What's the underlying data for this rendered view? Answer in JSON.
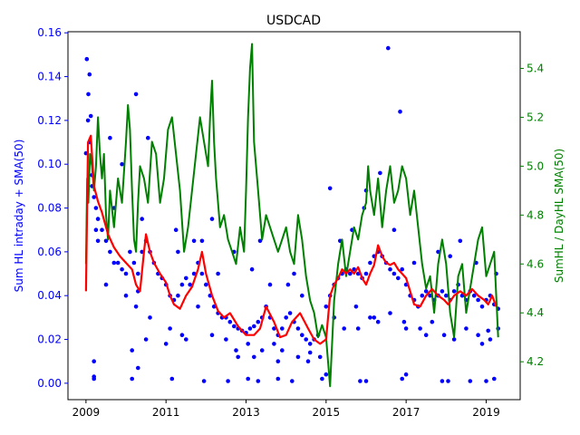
{
  "chart_data": {
    "type": "scatter",
    "title": "USDCAD",
    "ylabel": "Sum HL intraday + SMA(50)",
    "y2label": "SumHL / DayHL SMA(50)",
    "xlim": [
      2008.55,
      2019.85
    ],
    "ylim": [
      -0.0075,
      0.1605
    ],
    "y2lim": [
      4.045,
      5.55
    ],
    "x_ticks": [
      2009,
      2011,
      2013,
      2015,
      2017,
      2019
    ],
    "x_tick_labels": [
      "2009",
      "2011",
      "2013",
      "2015",
      "2017",
      "2019"
    ],
    "y_ticks": [
      0.0,
      0.02,
      0.04,
      0.06,
      0.08,
      0.1,
      0.12,
      0.14,
      0.16
    ],
    "y_tick_labels": [
      "0.00",
      "0.02",
      "0.04",
      "0.06",
      "0.08",
      "0.10",
      "0.12",
      "0.14",
      "0.16"
    ],
    "y2_ticks": [
      4.2,
      4.4,
      4.6,
      4.8,
      5.0,
      5.2,
      5.4
    ],
    "y2_tick_labels": [
      "4.2",
      "4.4",
      "4.6",
      "4.8",
      "5.0",
      "5.2",
      "5.4"
    ],
    "grid": false,
    "colors": {
      "left_axis": "#0000ff",
      "right_axis": "#008000",
      "points": "#0000ff",
      "sma": "#ff0000",
      "ratio": "#008000"
    },
    "series": [
      {
        "kind": "scatter",
        "axis": "left",
        "x": [
          2009.0,
          2009.05,
          2009.1,
          2009.15,
          2009.2,
          2009.25,
          2009.3,
          2009.4,
          2009.5,
          2009.6,
          2009.7,
          2009.8,
          2009.9,
          2010.0,
          2010.1,
          2010.2,
          2010.3,
          2010.4,
          2010.5,
          2010.6,
          2010.7,
          2010.8,
          2010.9,
          2011.0,
          2011.1,
          2011.2,
          2011.3,
          2011.4,
          2011.5,
          2011.6,
          2011.7,
          2011.8,
          2011.9,
          2012.0,
          2012.1,
          2012.2,
          2012.3,
          2012.4,
          2012.5,
          2012.6,
          2012.7,
          2012.8,
          2012.9,
          2013.0,
          2013.1,
          2013.2,
          2013.3,
          2013.4,
          2013.5,
          2013.6,
          2013.7,
          2013.8,
          2013.9,
          2014.0,
          2014.1,
          2014.2,
          2014.3,
          2014.4,
          2014.5,
          2014.6,
          2014.7,
          2014.8,
          2015.0,
          2015.1,
          2015.2,
          2015.3,
          2015.4,
          2015.5,
          2015.6,
          2015.7,
          2015.8,
          2015.9,
          2016.0,
          2016.1,
          2016.2,
          2016.3,
          2016.4,
          2016.5,
          2016.6,
          2016.7,
          2016.8,
          2016.9,
          2017.0,
          2017.1,
          2017.2,
          2017.3,
          2017.4,
          2017.5,
          2017.6,
          2017.7,
          2017.8,
          2017.9,
          2018.0,
          2018.1,
          2018.2,
          2018.3,
          2018.4,
          2018.5,
          2018.6,
          2018.7,
          2018.8,
          2018.9,
          2019.0,
          2019.1,
          2019.2,
          2019.3,
          2009.02,
          2009.06,
          2009.09,
          2009.12,
          2009.6,
          2009.9,
          2010.25,
          2010.55,
          2011.25,
          2011.9,
          2012.15,
          2012.7,
          2013.35,
          2014.2,
          2015.1,
          2016.35,
          2016.55,
          2016.85,
          2009.2,
          2010.15,
          2010.5,
          2011.0,
          2011.5,
          2012.8,
          2013.8,
          2014.6,
          2015.8,
          2016.2,
          2017.0,
          2017.5,
          2018.2,
          2018.9,
          2019.1,
          2009.15,
          2009.7,
          2010.4,
          2011.3,
          2011.7,
          2012.3,
          2013.15,
          2013.6,
          2014.05,
          2014.4,
          2015.35,
          2015.65,
          2015.95,
          2016.0,
          2016.7,
          2017.2,
          2017.8,
          2018.1,
          2018.35,
          2018.75,
          2019.25,
          2009.25,
          2009.3,
          2009.5,
          2010.0,
          2010.25,
          2010.3,
          2010.6,
          2011.1,
          2011.4,
          2011.8,
          2012.15,
          2012.5,
          2012.75,
          2013.05,
          2013.2,
          2013.4,
          2013.7,
          2013.9,
          2014.3,
          2014.55,
          2014.85,
          2015.2,
          2015.45,
          2015.75,
          2016.1,
          2016.3,
          2016.6,
          2016.95,
          2017.35,
          2017.65,
          2017.95,
          2018.5,
          2018.8,
          2019.05,
          2019.3,
          2009.2,
          2009.2,
          2010.15,
          2010.3,
          2011.15,
          2011.95,
          2012.55,
          2013.05,
          2013.3,
          2013.8,
          2014.15,
          2014.9,
          2015.0,
          2015.85,
          2016.0,
          2016.9,
          2017.0,
          2017.9,
          2018.05,
          2018.6,
          2019.0,
          2019.2
        ],
        "y": [
          0.105,
          0.12,
          0.11,
          0.095,
          0.085,
          0.08,
          0.075,
          0.07,
          0.065,
          0.06,
          0.055,
          0.055,
          0.052,
          0.05,
          0.06,
          0.055,
          0.05,
          0.06,
          0.065,
          0.06,
          0.055,
          0.05,
          0.048,
          0.045,
          0.04,
          0.038,
          0.04,
          0.045,
          0.048,
          0.045,
          0.05,
          0.055,
          0.05,
          0.045,
          0.04,
          0.035,
          0.032,
          0.03,
          0.03,
          0.028,
          0.026,
          0.025,
          0.024,
          0.023,
          0.025,
          0.026,
          0.028,
          0.03,
          0.035,
          0.03,
          0.025,
          0.022,
          0.025,
          0.03,
          0.032,
          0.028,
          0.025,
          0.022,
          0.02,
          0.018,
          0.02,
          0.022,
          0.035,
          0.04,
          0.045,
          0.048,
          0.05,
          0.052,
          0.05,
          0.052,
          0.05,
          0.048,
          0.05,
          0.055,
          0.058,
          0.06,
          0.058,
          0.055,
          0.052,
          0.05,
          0.048,
          0.052,
          0.045,
          0.04,
          0.038,
          0.035,
          0.04,
          0.042,
          0.04,
          0.038,
          0.04,
          0.042,
          0.04,
          0.038,
          0.042,
          0.045,
          0.04,
          0.038,
          0.042,
          0.04,
          0.038,
          0.035,
          0.038,
          0.04,
          0.036,
          0.034,
          0.148,
          0.132,
          0.141,
          0.122,
          0.112,
          0.1,
          0.132,
          0.112,
          0.07,
          0.065,
          0.075,
          0.06,
          0.065,
          0.05,
          0.089,
          0.096,
          0.153,
          0.124,
          0.01,
          0.015,
          0.02,
          0.018,
          0.02,
          0.012,
          0.01,
          0.014,
          0.025,
          0.03,
          0.025,
          0.022,
          0.02,
          0.018,
          0.02,
          0.09,
          0.08,
          0.075,
          0.06,
          0.065,
          0.05,
          0.052,
          0.045,
          0.045,
          0.04,
          0.065,
          0.07,
          0.08,
          0.088,
          0.07,
          0.055,
          0.06,
          0.058,
          0.065,
          0.055,
          0.05,
          0.07,
          0.065,
          0.045,
          0.04,
          0.035,
          0.042,
          0.03,
          0.025,
          0.022,
          0.035,
          0.022,
          0.02,
          0.015,
          0.018,
          0.012,
          0.015,
          0.018,
          0.015,
          0.012,
          0.01,
          0.012,
          0.03,
          0.025,
          0.035,
          0.03,
          0.028,
          0.032,
          0.028,
          0.025,
          0.028,
          0.022,
          0.025,
          0.022,
          0.024,
          0.025,
          0.003,
          0.002,
          0.002,
          0.007,
          0.002,
          0.001,
          0.001,
          0.002,
          0.001,
          0.002,
          0.001,
          0.002,
          0.004,
          0.001,
          0.001,
          0.002,
          0.004,
          0.001,
          0.001,
          0.001,
          0.001,
          0.002
        ]
      },
      {
        "kind": "line",
        "axis": "left",
        "name": "SMA(50)",
        "x": [
          2009.0,
          2009.05,
          2009.12,
          2009.2,
          2009.3,
          2009.4,
          2009.55,
          2009.7,
          2009.85,
          2010.0,
          2010.15,
          2010.25,
          2010.35,
          2010.45,
          2010.5,
          2010.6,
          2010.7,
          2010.85,
          2011.0,
          2011.1,
          2011.2,
          2011.35,
          2011.5,
          2011.65,
          2011.8,
          2011.9,
          2012.0,
          2012.15,
          2012.3,
          2012.45,
          2012.6,
          2012.8,
          2013.0,
          2013.2,
          2013.35,
          2013.5,
          2013.7,
          2013.85,
          2014.0,
          2014.15,
          2014.35,
          2014.55,
          2014.7,
          2014.85,
          2015.0,
          2015.1,
          2015.2,
          2015.3,
          2015.4,
          2015.5,
          2015.6,
          2015.7,
          2015.8,
          2015.9,
          2016.0,
          2016.1,
          2016.2,
          2016.3,
          2016.4,
          2016.5,
          2016.6,
          2016.7,
          2016.8,
          2016.9,
          2017.0,
          2017.1,
          2017.2,
          2017.35,
          2017.5,
          2017.65,
          2017.8,
          2017.95,
          2018.05,
          2018.2,
          2018.35,
          2018.5,
          2018.65,
          2018.8,
          2018.95,
          2019.05,
          2019.15,
          2019.25
        ],
        "y": [
          0.042,
          0.11,
          0.113,
          0.09,
          0.083,
          0.078,
          0.068,
          0.062,
          0.058,
          0.055,
          0.052,
          0.045,
          0.042,
          0.06,
          0.068,
          0.06,
          0.055,
          0.05,
          0.046,
          0.04,
          0.036,
          0.034,
          0.04,
          0.044,
          0.052,
          0.06,
          0.05,
          0.04,
          0.033,
          0.03,
          0.032,
          0.026,
          0.022,
          0.022,
          0.025,
          0.035,
          0.028,
          0.021,
          0.022,
          0.028,
          0.032,
          0.025,
          0.02,
          0.018,
          0.02,
          0.04,
          0.045,
          0.048,
          0.052,
          0.05,
          0.052,
          0.05,
          0.053,
          0.048,
          0.045,
          0.05,
          0.054,
          0.063,
          0.058,
          0.055,
          0.054,
          0.055,
          0.052,
          0.05,
          0.048,
          0.042,
          0.036,
          0.035,
          0.04,
          0.043,
          0.04,
          0.038,
          0.036,
          0.04,
          0.042,
          0.04,
          0.043,
          0.04,
          0.038,
          0.036,
          0.04,
          0.035
        ]
      },
      {
        "kind": "line",
        "axis": "right",
        "name": "SumHL / DayHL SMA(50)",
        "x": [
          2009.0,
          2009.03,
          2009.06,
          2009.1,
          2009.15,
          2009.2,
          2009.25,
          2009.3,
          2009.35,
          2009.4,
          2009.45,
          2009.5,
          2009.55,
          2009.6,
          2009.7,
          2009.8,
          2009.9,
          2010.0,
          2010.05,
          2010.1,
          2010.15,
          2010.2,
          2010.25,
          2010.3,
          2010.35,
          2010.45,
          2010.55,
          2010.65,
          2010.75,
          2010.85,
          2010.95,
          2011.05,
          2011.15,
          2011.25,
          2011.35,
          2011.45,
          2011.55,
          2011.65,
          2011.75,
          2011.85,
          2011.95,
          2012.05,
          2012.1,
          2012.15,
          2012.2,
          2012.25,
          2012.35,
          2012.45,
          2012.55,
          2012.65,
          2012.75,
          2012.85,
          2012.95,
          2013.0,
          2013.05,
          2013.1,
          2013.15,
          2013.2,
          2013.3,
          2013.4,
          2013.5,
          2013.6,
          2013.7,
          2013.8,
          2013.9,
          2014.0,
          2014.1,
          2014.2,
          2014.3,
          2014.4,
          2014.5,
          2014.6,
          2014.7,
          2014.8,
          2014.9,
          2015.0,
          2015.05,
          2015.1,
          2015.2,
          2015.3,
          2015.4,
          2015.5,
          2015.6,
          2015.7,
          2015.8,
          2015.9,
          2016.0,
          2016.05,
          2016.1,
          2016.2,
          2016.3,
          2016.4,
          2016.5,
          2016.6,
          2016.7,
          2016.8,
          2016.9,
          2017.0,
          2017.1,
          2017.2,
          2017.3,
          2017.4,
          2017.5,
          2017.6,
          2017.7,
          2017.8,
          2017.9,
          2018.0,
          2018.1,
          2018.2,
          2018.3,
          2018.4,
          2018.5,
          2018.6,
          2018.7,
          2018.8,
          2018.9,
          2019.0,
          2019.1,
          2019.2,
          2019.3
        ],
        "y": [
          4.6,
          4.95,
          4.85,
          5.05,
          5.0,
          4.9,
          5.0,
          5.2,
          5.05,
          4.95,
          5.05,
          4.8,
          4.7,
          4.9,
          4.75,
          4.95,
          4.85,
          5.1,
          5.25,
          5.15,
          4.9,
          4.7,
          4.65,
          4.85,
          5.0,
          4.95,
          4.85,
          5.1,
          5.05,
          4.85,
          4.95,
          5.15,
          5.2,
          5.05,
          4.9,
          4.65,
          4.75,
          4.9,
          5.05,
          5.2,
          5.1,
          5.0,
          5.2,
          5.35,
          5.1,
          4.95,
          4.75,
          4.8,
          4.7,
          4.65,
          4.6,
          4.75,
          4.65,
          4.9,
          5.2,
          5.4,
          5.5,
          5.1,
          4.9,
          4.7,
          4.8,
          4.75,
          4.7,
          4.65,
          4.7,
          4.75,
          4.65,
          4.6,
          4.8,
          4.7,
          4.55,
          4.45,
          4.4,
          4.3,
          4.35,
          4.3,
          4.2,
          4.1,
          4.45,
          4.6,
          4.7,
          4.55,
          4.65,
          4.75,
          4.7,
          4.8,
          4.85,
          5.0,
          4.9,
          4.8,
          4.95,
          4.75,
          4.9,
          5.0,
          4.85,
          4.9,
          5.0,
          4.95,
          4.8,
          4.9,
          4.75,
          4.6,
          4.5,
          4.55,
          4.4,
          4.6,
          4.7,
          4.6,
          4.4,
          4.3,
          4.55,
          4.6,
          4.4,
          4.5,
          4.6,
          4.7,
          4.75,
          4.55,
          4.6,
          4.65,
          4.3
        ]
      }
    ]
  }
}
